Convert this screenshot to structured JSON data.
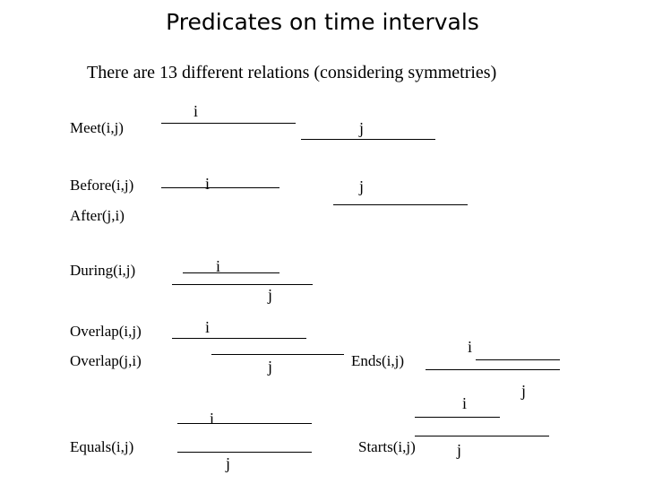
{
  "title": "Predicates on time intervals",
  "subtitle": "There are 13 different relations (considering symmetries)",
  "relations": {
    "meet": "Meet(i,j)",
    "before": "Before(i,j)",
    "after": "After(j,i)",
    "during": "During(i,j)",
    "overlap_ij": "Overlap(i,j)",
    "overlap_ji": "Overlap(j,i)",
    "ends": "Ends(i,j)",
    "equals": "Equals(i,j)",
    "starts": "Starts(i,j)"
  },
  "vars": {
    "i": "i",
    "j": "j"
  }
}
